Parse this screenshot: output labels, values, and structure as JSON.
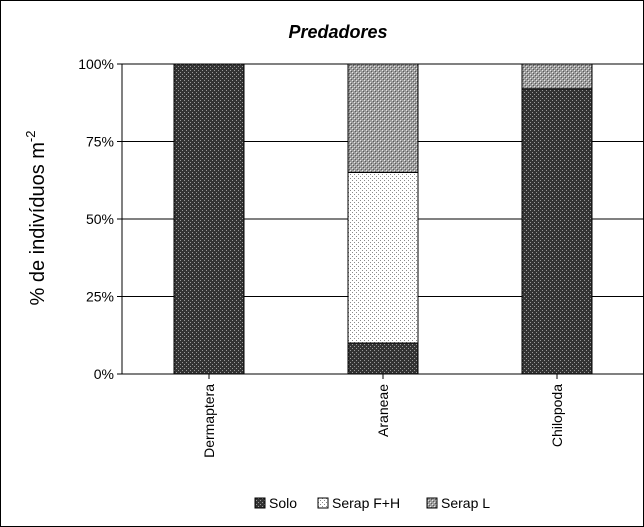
{
  "chart_data": {
    "type": "bar",
    "stacked": true,
    "title": "Predadores",
    "xlabel": "",
    "ylabel": "% de indivíduos m",
    "ylabel_superscript": "-2",
    "ylim": [
      0,
      100
    ],
    "yticks": [
      "0%",
      "25%",
      "50%",
      "75%",
      "100%"
    ],
    "grid": true,
    "legend_position": "bottom",
    "categories": [
      "Dermaptera",
      "Araneae",
      "Chilopoda"
    ],
    "series": [
      {
        "name": "Solo",
        "values": [
          100,
          10,
          92
        ],
        "pattern": "dark-dots"
      },
      {
        "name": "Serap F+H",
        "values": [
          0,
          55,
          0
        ],
        "pattern": "light-dots"
      },
      {
        "name": "Serap L",
        "values": [
          0,
          35,
          8
        ],
        "pattern": "medium-checks"
      }
    ]
  }
}
